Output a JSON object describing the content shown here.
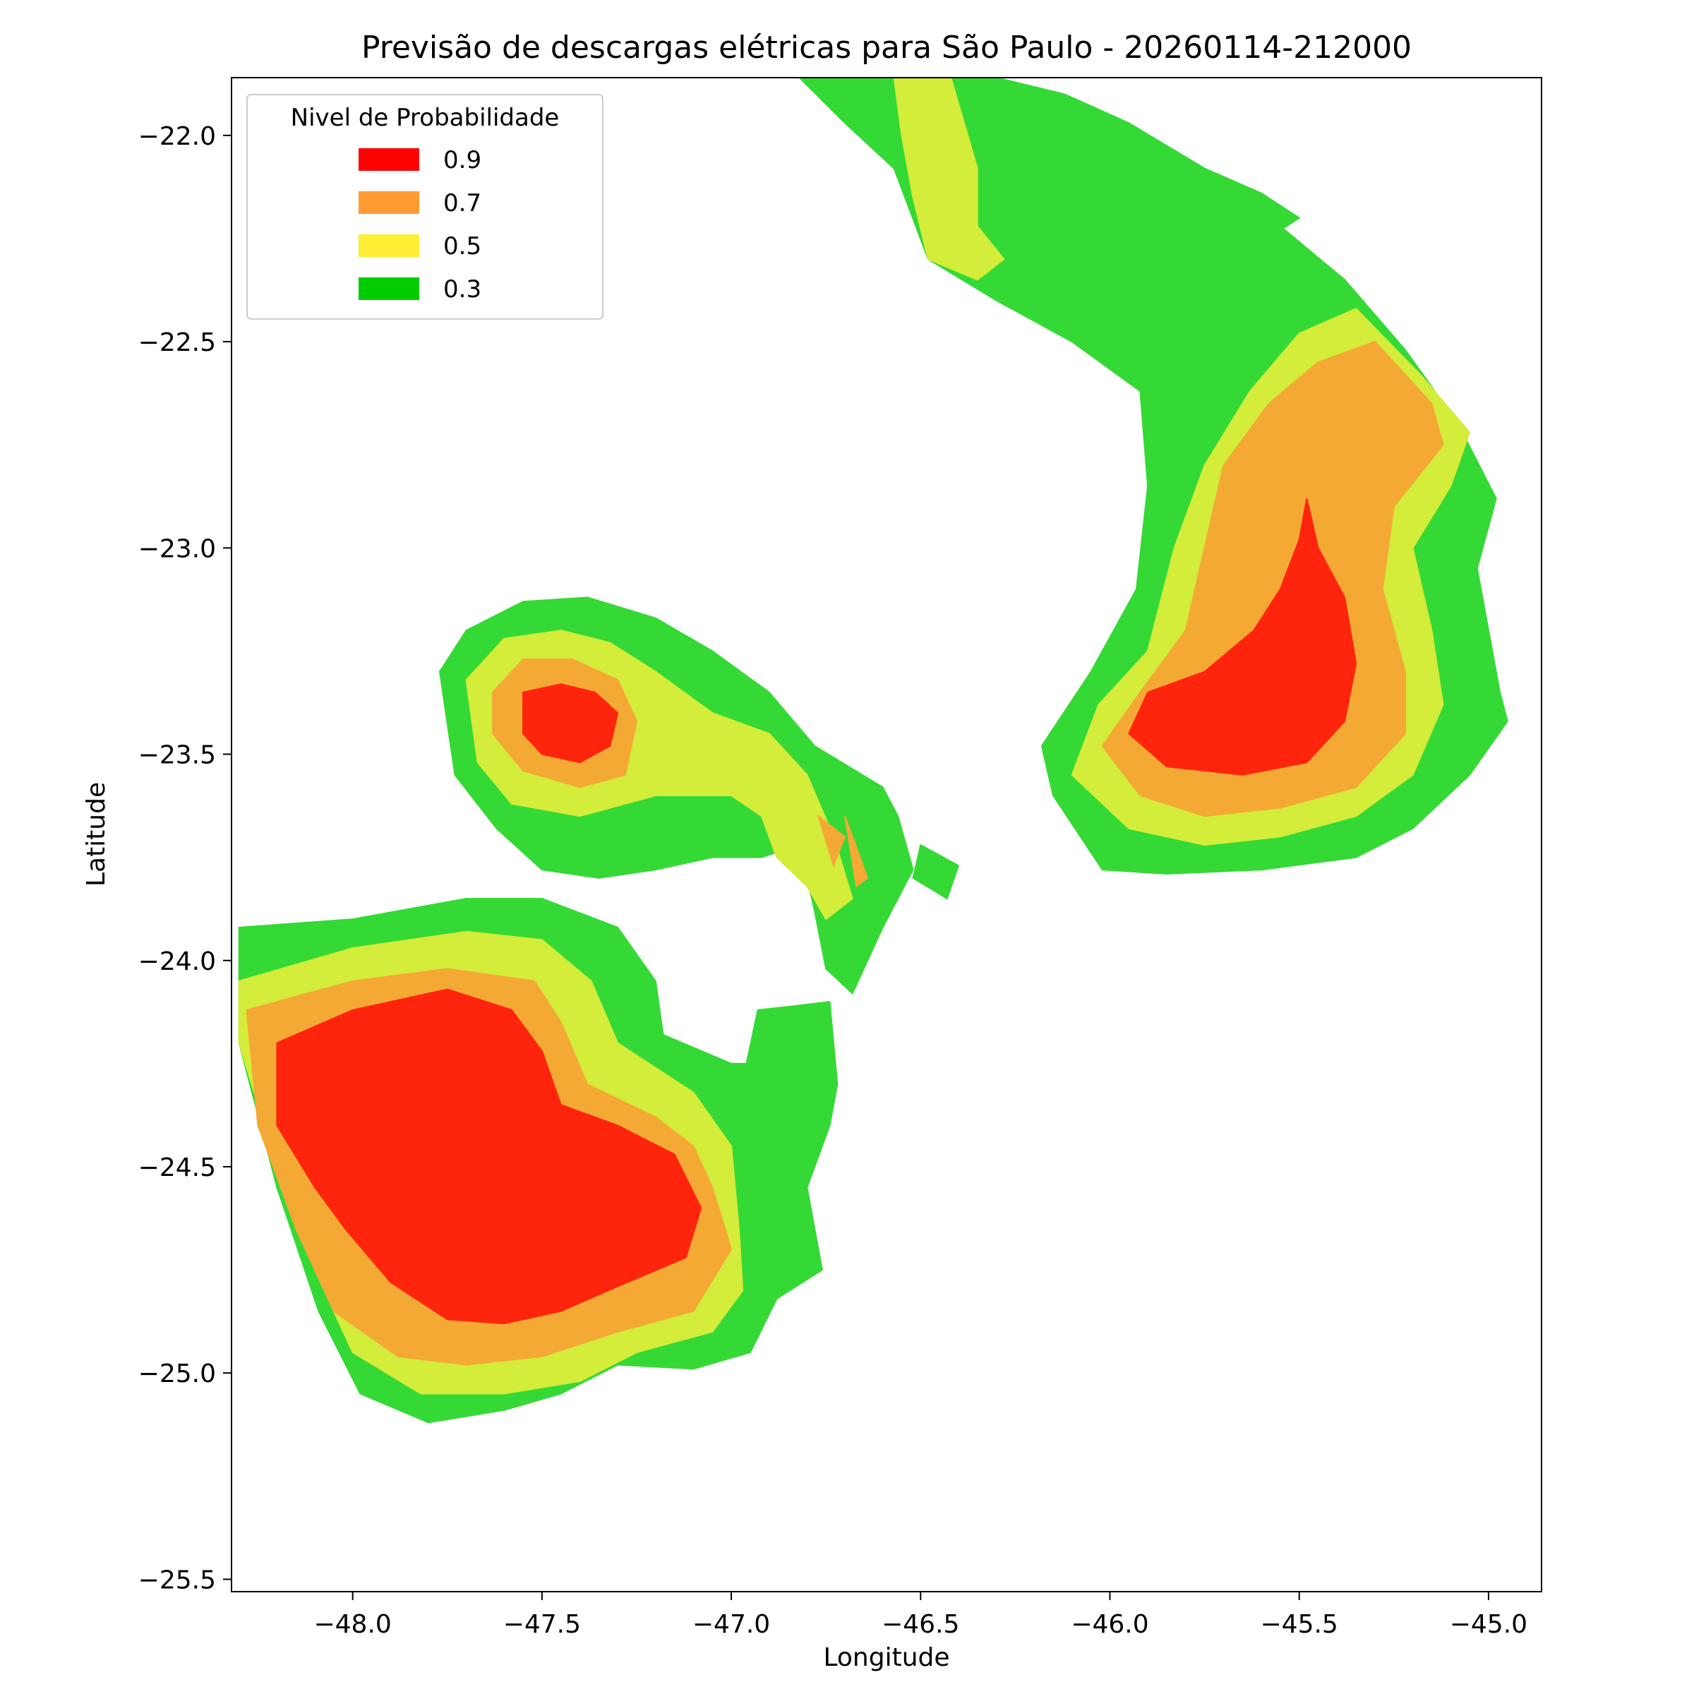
{
  "chart_data": {
    "type": "contour",
    "title": "Previsão de descargas elétricas para São Paulo - 20260114-212000",
    "xlabel": "Longitude",
    "ylabel": "Latitude",
    "xlim": [
      -48.32,
      -44.86
    ],
    "ylim": [
      -25.53,
      -21.86
    ],
    "xticks": [
      -48.0,
      -47.5,
      -47.0,
      -46.5,
      -46.0,
      -45.5,
      -45.0
    ],
    "xtick_labels": [
      "−48.0",
      "−47.5",
      "−47.0",
      "−46.5",
      "−46.0",
      "−45.5",
      "−45.0"
    ],
    "yticks": [
      -22.0,
      -22.5,
      -23.0,
      -23.5,
      -24.0,
      -24.5,
      -25.0,
      -25.5
    ],
    "ytick_labels": [
      "−22.0",
      "−22.5",
      "−23.0",
      "−23.5",
      "−24.0",
      "−24.5",
      "−25.0",
      "−25.5"
    ],
    "grid": false,
    "legend": {
      "title": "Nivel de Probabilidade",
      "placement": "top-left",
      "entries": [
        {
          "label": "0.9",
          "color": "#ff0000"
        },
        {
          "label": "0.7",
          "color": "#ff9933"
        },
        {
          "label": "0.5",
          "color": "#ffee33"
        },
        {
          "label": "0.3",
          "color": "#00cc00"
        }
      ]
    },
    "fill_colors": {
      "0.3": "#35d935",
      "0.3_dark": "#0acc0a",
      "0.5": "#d4ec3a",
      "0.7": "#f4a935",
      "0.9": "#ff250d"
    },
    "regions": [
      {
        "name": "southwest-cell",
        "level": 0.3,
        "polygon": [
          [
            -48.3,
            -23.92
          ],
          [
            -48.0,
            -23.9
          ],
          [
            -47.7,
            -23.85
          ],
          [
            -47.5,
            -23.85
          ],
          [
            -47.3,
            -23.92
          ],
          [
            -47.2,
            -24.05
          ],
          [
            -47.18,
            -24.18
          ],
          [
            -47.0,
            -24.25
          ],
          [
            -46.96,
            -24.25
          ],
          [
            -46.93,
            -24.12
          ],
          [
            -46.83,
            -24.11
          ],
          [
            -46.74,
            -24.1
          ],
          [
            -46.72,
            -24.3
          ],
          [
            -46.74,
            -24.4
          ],
          [
            -46.8,
            -24.55
          ],
          [
            -46.78,
            -24.65
          ],
          [
            -46.76,
            -24.75
          ],
          [
            -46.88,
            -24.82
          ],
          [
            -46.95,
            -24.95
          ],
          [
            -47.1,
            -24.99
          ],
          [
            -47.3,
            -24.98
          ],
          [
            -47.45,
            -25.05
          ],
          [
            -47.6,
            -25.09
          ],
          [
            -47.8,
            -25.12
          ],
          [
            -47.98,
            -25.05
          ],
          [
            -48.09,
            -24.85
          ],
          [
            -48.2,
            -24.55
          ],
          [
            -48.3,
            -24.2
          ]
        ]
      },
      {
        "name": "southwest-cell",
        "level": 0.5,
        "polygon": [
          [
            -48.3,
            -24.05
          ],
          [
            -48.0,
            -23.97
          ],
          [
            -47.7,
            -23.93
          ],
          [
            -47.5,
            -23.95
          ],
          [
            -47.37,
            -24.05
          ],
          [
            -47.3,
            -24.2
          ],
          [
            -47.1,
            -24.32
          ],
          [
            -47.0,
            -24.45
          ],
          [
            -46.98,
            -24.65
          ],
          [
            -46.97,
            -24.8
          ],
          [
            -47.05,
            -24.9
          ],
          [
            -47.25,
            -24.95
          ],
          [
            -47.4,
            -25.02
          ],
          [
            -47.6,
            -25.05
          ],
          [
            -47.82,
            -25.05
          ],
          [
            -48.0,
            -24.95
          ],
          [
            -48.1,
            -24.75
          ],
          [
            -48.2,
            -24.5
          ],
          [
            -48.3,
            -24.2
          ]
        ]
      },
      {
        "name": "southwest-cell",
        "level": 0.7,
        "polygon": [
          [
            -48.28,
            -24.12
          ],
          [
            -48.0,
            -24.05
          ],
          [
            -47.75,
            -24.02
          ],
          [
            -47.52,
            -24.05
          ],
          [
            -47.45,
            -24.15
          ],
          [
            -47.38,
            -24.3
          ],
          [
            -47.2,
            -24.38
          ],
          [
            -47.1,
            -24.45
          ],
          [
            -47.05,
            -24.55
          ],
          [
            -47.0,
            -24.7
          ],
          [
            -47.1,
            -24.85
          ],
          [
            -47.3,
            -24.9
          ],
          [
            -47.5,
            -24.96
          ],
          [
            -47.7,
            -24.98
          ],
          [
            -47.88,
            -24.96
          ],
          [
            -48.05,
            -24.85
          ],
          [
            -48.15,
            -24.65
          ],
          [
            -48.25,
            -24.4
          ]
        ]
      },
      {
        "name": "southwest-cell",
        "level": 0.9,
        "polygon": [
          [
            -48.2,
            -24.2
          ],
          [
            -48.0,
            -24.12
          ],
          [
            -47.75,
            -24.07
          ],
          [
            -47.58,
            -24.12
          ],
          [
            -47.5,
            -24.22
          ],
          [
            -47.45,
            -24.35
          ],
          [
            -47.3,
            -24.4
          ],
          [
            -47.15,
            -24.47
          ],
          [
            -47.08,
            -24.6
          ],
          [
            -47.12,
            -24.72
          ],
          [
            -47.3,
            -24.79
          ],
          [
            -47.45,
            -24.85
          ],
          [
            -47.6,
            -24.88
          ],
          [
            -47.75,
            -24.87
          ],
          [
            -47.9,
            -24.78
          ],
          [
            -48.02,
            -24.65
          ],
          [
            -48.1,
            -24.55
          ],
          [
            -48.2,
            -24.4
          ]
        ]
      },
      {
        "name": "central-cell",
        "level": 0.3,
        "polygon": [
          [
            -47.77,
            -23.3
          ],
          [
            -47.7,
            -23.2
          ],
          [
            -47.55,
            -23.13
          ],
          [
            -47.38,
            -23.12
          ],
          [
            -47.2,
            -23.17
          ],
          [
            -47.05,
            -23.25
          ],
          [
            -46.9,
            -23.35
          ],
          [
            -46.78,
            -23.48
          ],
          [
            -46.6,
            -23.58
          ],
          [
            -46.56,
            -23.65
          ],
          [
            -46.52,
            -23.78
          ],
          [
            -46.6,
            -23.92
          ],
          [
            -46.68,
            -24.08
          ],
          [
            -46.75,
            -24.02
          ],
          [
            -46.78,
            -23.88
          ],
          [
            -46.82,
            -23.72
          ],
          [
            -46.92,
            -23.75
          ],
          [
            -47.05,
            -23.75
          ],
          [
            -47.2,
            -23.78
          ],
          [
            -47.35,
            -23.8
          ],
          [
            -47.5,
            -23.78
          ],
          [
            -47.62,
            -23.68
          ],
          [
            -47.73,
            -23.55
          ]
        ]
      },
      {
        "name": "central-cell",
        "level": 0.3,
        "polygon": [
          [
            -46.5,
            -23.72
          ],
          [
            -46.4,
            -23.77
          ],
          [
            -46.43,
            -23.85
          ],
          [
            -46.52,
            -23.8
          ]
        ]
      },
      {
        "name": "central-cell",
        "level": 0.5,
        "polygon": [
          [
            -47.7,
            -23.32
          ],
          [
            -47.6,
            -23.22
          ],
          [
            -47.45,
            -23.2
          ],
          [
            -47.32,
            -23.23
          ],
          [
            -47.2,
            -23.3
          ],
          [
            -47.05,
            -23.4
          ],
          [
            -46.9,
            -23.45
          ],
          [
            -46.8,
            -23.55
          ],
          [
            -46.73,
            -23.7
          ],
          [
            -46.68,
            -23.85
          ],
          [
            -46.75,
            -23.9
          ],
          [
            -46.8,
            -23.82
          ],
          [
            -46.88,
            -23.75
          ],
          [
            -46.92,
            -23.65
          ],
          [
            -47.0,
            -23.6
          ],
          [
            -47.2,
            -23.6
          ],
          [
            -47.4,
            -23.65
          ],
          [
            -47.58,
            -23.62
          ],
          [
            -47.67,
            -23.52
          ]
        ]
      },
      {
        "name": "central-cell",
        "level": 0.7,
        "polygon": [
          [
            -47.63,
            -23.35
          ],
          [
            -47.55,
            -23.27
          ],
          [
            -47.42,
            -23.27
          ],
          [
            -47.3,
            -23.32
          ],
          [
            -47.25,
            -23.42
          ],
          [
            -47.28,
            -23.55
          ],
          [
            -47.4,
            -23.58
          ],
          [
            -47.55,
            -23.54
          ],
          [
            -47.63,
            -23.45
          ]
        ]
      },
      {
        "name": "central-cell",
        "level": 0.7,
        "polygon": [
          [
            -46.77,
            -23.65
          ],
          [
            -46.7,
            -23.7
          ],
          [
            -46.73,
            -23.77
          ]
        ]
      },
      {
        "name": "central-cell",
        "level": 0.7,
        "polygon": [
          [
            -46.7,
            -23.65
          ],
          [
            -46.64,
            -23.8
          ],
          [
            -46.67,
            -23.82
          ]
        ]
      },
      {
        "name": "central-cell",
        "level": 0.9,
        "polygon": [
          [
            -47.55,
            -23.35
          ],
          [
            -47.45,
            -23.33
          ],
          [
            -47.36,
            -23.35
          ],
          [
            -47.3,
            -23.4
          ],
          [
            -47.32,
            -23.48
          ],
          [
            -47.4,
            -23.52
          ],
          [
            -47.5,
            -23.5
          ],
          [
            -47.55,
            -23.45
          ]
        ]
      },
      {
        "name": "northeast-cell",
        "level": 0.3,
        "polygon": [
          [
            -46.82,
            -21.86
          ],
          [
            -46.5,
            -21.86
          ],
          [
            -46.3,
            -21.86
          ],
          [
            -46.12,
            -21.9
          ],
          [
            -45.95,
            -21.97
          ],
          [
            -45.75,
            -22.08
          ],
          [
            -45.55,
            -22.22
          ],
          [
            -45.38,
            -22.35
          ],
          [
            -45.22,
            -22.52
          ],
          [
            -45.08,
            -22.7
          ],
          [
            -44.98,
            -22.88
          ],
          [
            -45.03,
            -23.05
          ],
          [
            -45.0,
            -23.2
          ],
          [
            -44.97,
            -23.35
          ],
          [
            -44.95,
            -23.42
          ],
          [
            -45.05,
            -23.55
          ],
          [
            -45.2,
            -23.68
          ],
          [
            -45.35,
            -23.75
          ],
          [
            -45.6,
            -23.78
          ],
          [
            -45.85,
            -23.79
          ],
          [
            -46.02,
            -23.78
          ],
          [
            -46.15,
            -23.6
          ],
          [
            -46.18,
            -23.48
          ],
          [
            -46.05,
            -23.3
          ],
          [
            -45.93,
            -23.1
          ],
          [
            -45.9,
            -22.85
          ],
          [
            -45.92,
            -22.62
          ],
          [
            -46.1,
            -22.5
          ],
          [
            -46.3,
            -22.4
          ],
          [
            -46.48,
            -22.3
          ],
          [
            -46.57,
            -22.08
          ],
          [
            -46.7,
            -21.97
          ]
        ]
      },
      {
        "name": "northeast-cell",
        "level": 0.5,
        "polygon": [
          [
            -46.57,
            -21.86
          ],
          [
            -46.42,
            -21.86
          ],
          [
            -46.35,
            -22.08
          ],
          [
            -46.35,
            -22.22
          ],
          [
            -46.28,
            -22.3
          ],
          [
            -46.35,
            -22.35
          ],
          [
            -46.48,
            -22.3
          ],
          [
            -46.52,
            -22.15
          ],
          [
            -46.55,
            -22.0
          ]
        ]
      },
      {
        "name": "northeast-cell",
        "level": 0.3,
        "polygon": [
          [
            -45.95,
            -21.99
          ],
          [
            -45.8,
            -22.06
          ],
          [
            -45.6,
            -22.14
          ],
          [
            -45.5,
            -22.2
          ],
          [
            -45.6,
            -22.26
          ],
          [
            -45.75,
            -22.22
          ],
          [
            -45.95,
            -22.16
          ],
          [
            -46.05,
            -22.1
          ]
        ]
      },
      {
        "name": "northeast-cell",
        "level": 0.5,
        "polygon": [
          [
            -45.35,
            -22.42
          ],
          [
            -45.18,
            -22.58
          ],
          [
            -45.05,
            -22.72
          ],
          [
            -45.1,
            -22.85
          ],
          [
            -45.2,
            -23.0
          ],
          [
            -45.15,
            -23.2
          ],
          [
            -45.12,
            -23.38
          ],
          [
            -45.2,
            -23.55
          ],
          [
            -45.35,
            -23.65
          ],
          [
            -45.55,
            -23.7
          ],
          [
            -45.75,
            -23.72
          ],
          [
            -45.95,
            -23.68
          ],
          [
            -46.1,
            -23.55
          ],
          [
            -46.03,
            -23.38
          ],
          [
            -45.9,
            -23.25
          ],
          [
            -45.83,
            -23.0
          ],
          [
            -45.75,
            -22.8
          ],
          [
            -45.63,
            -22.62
          ],
          [
            -45.5,
            -22.48
          ]
        ]
      },
      {
        "name": "northeast-cell",
        "level": 0.7,
        "polygon": [
          [
            -45.3,
            -22.5
          ],
          [
            -45.15,
            -22.65
          ],
          [
            -45.12,
            -22.75
          ],
          [
            -45.25,
            -22.9
          ],
          [
            -45.28,
            -23.1
          ],
          [
            -45.22,
            -23.3
          ],
          [
            -45.22,
            -23.45
          ],
          [
            -45.35,
            -23.58
          ],
          [
            -45.55,
            -23.63
          ],
          [
            -45.75,
            -23.65
          ],
          [
            -45.92,
            -23.6
          ],
          [
            -46.02,
            -23.48
          ],
          [
            -45.92,
            -23.35
          ],
          [
            -45.8,
            -23.2
          ],
          [
            -45.75,
            -23.0
          ],
          [
            -45.7,
            -22.8
          ],
          [
            -45.58,
            -22.65
          ],
          [
            -45.45,
            -22.55
          ]
        ]
      },
      {
        "name": "northeast-cell",
        "level": 0.9,
        "polygon": [
          [
            -45.48,
            -22.88
          ],
          [
            -45.45,
            -23.0
          ],
          [
            -45.38,
            -23.12
          ],
          [
            -45.35,
            -23.28
          ],
          [
            -45.38,
            -23.42
          ],
          [
            -45.48,
            -23.52
          ],
          [
            -45.65,
            -23.55
          ],
          [
            -45.85,
            -23.53
          ],
          [
            -45.95,
            -23.45
          ],
          [
            -45.9,
            -23.35
          ],
          [
            -45.75,
            -23.3
          ],
          [
            -45.62,
            -23.2
          ],
          [
            -45.55,
            -23.1
          ],
          [
            -45.5,
            -22.98
          ]
        ]
      }
    ]
  }
}
